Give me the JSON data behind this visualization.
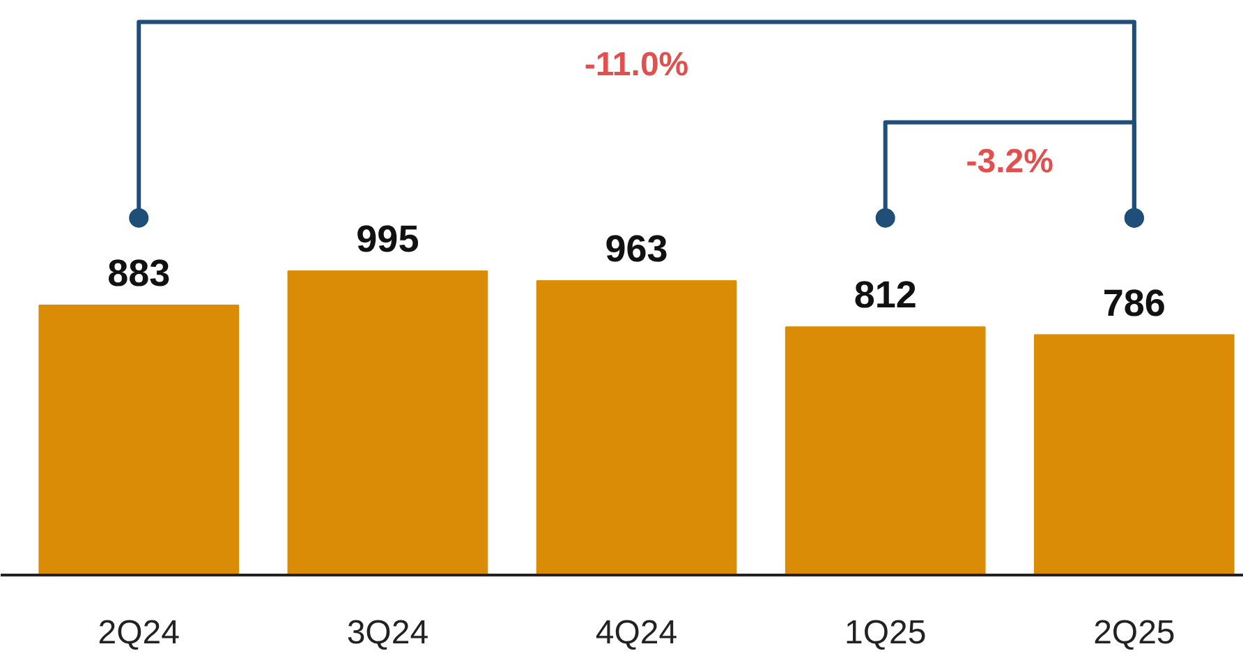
{
  "chart_data": {
    "type": "bar",
    "categories": [
      "2Q24",
      "3Q24",
      "4Q24",
      "1Q25",
      "2Q25"
    ],
    "values": [
      883,
      995,
      963,
      812,
      786
    ],
    "color": "#db8c06",
    "data_labels": true,
    "grid": false,
    "annotations": [
      "-11.0%",
      "-3.2%"
    ]
  }
}
